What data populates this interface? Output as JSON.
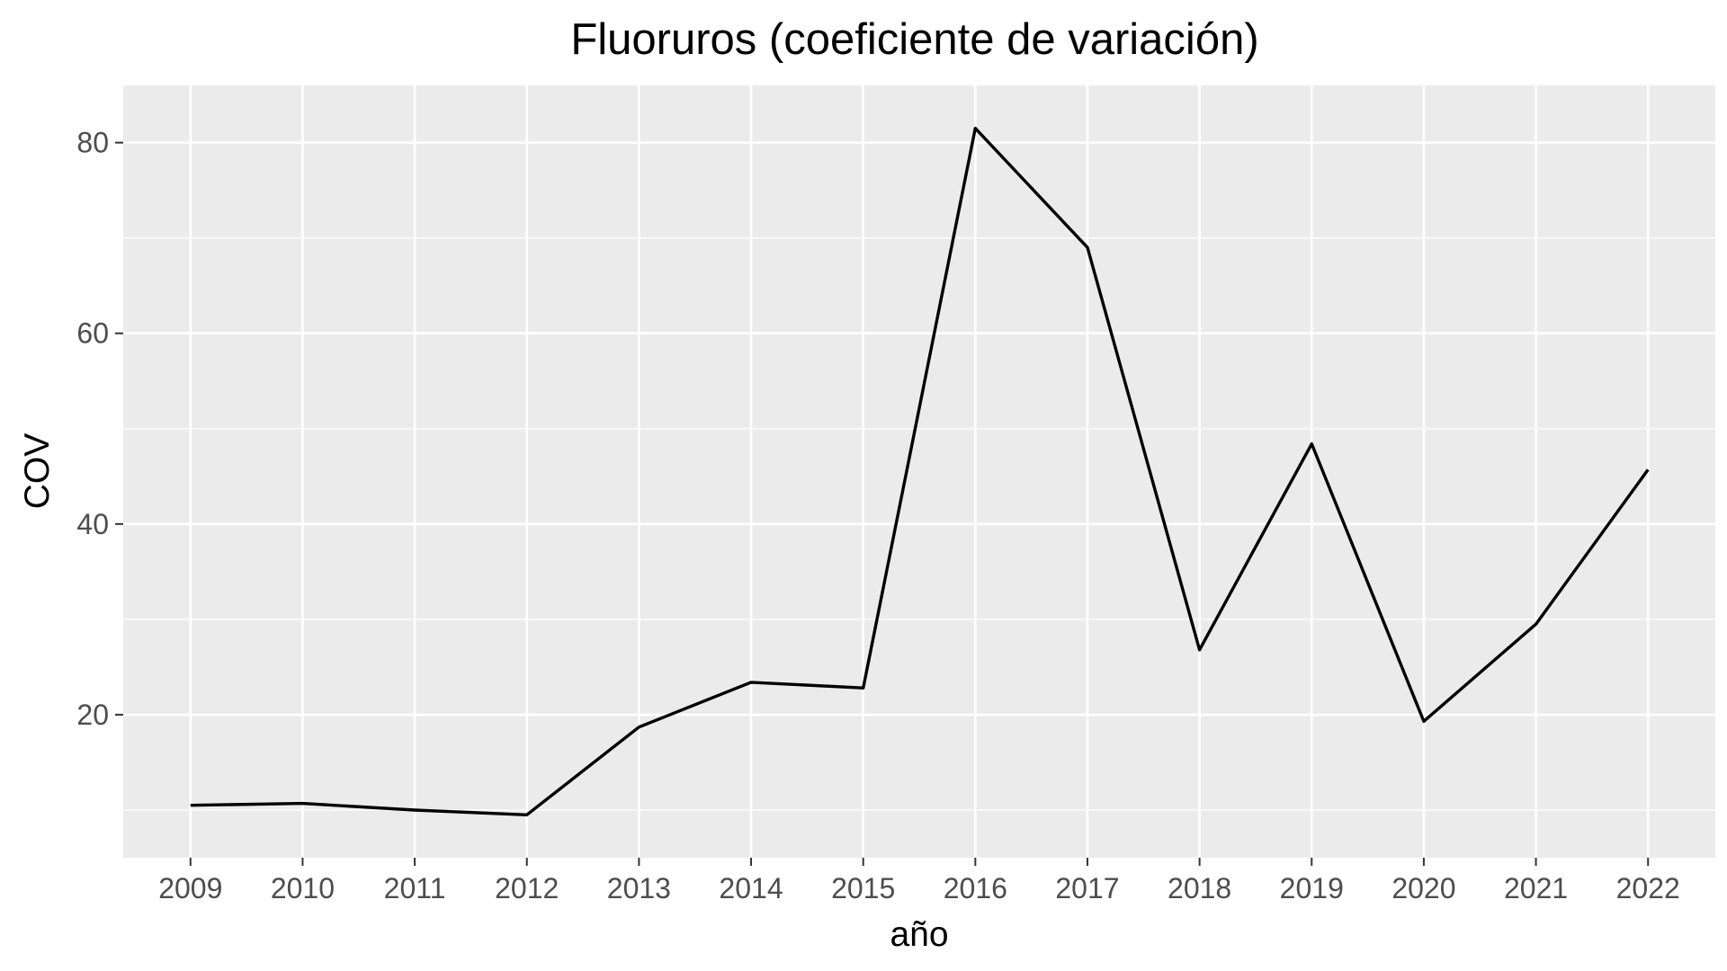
{
  "chart_data": {
    "type": "line",
    "title": "Fluoruros (coeficiente de variación)",
    "xlabel": "año",
    "ylabel": "COV",
    "x": [
      2009,
      2010,
      2011,
      2012,
      2013,
      2014,
      2015,
      2016,
      2017,
      2018,
      2019,
      2020,
      2021,
      2022
    ],
    "x_tick_labels": [
      "2009",
      "2010",
      "2011",
      "2012",
      "2013",
      "2014",
      "2015",
      "2016",
      "2017",
      "2018",
      "2019",
      "2020",
      "2021",
      "2022"
    ],
    "series": [
      {
        "values": [
          10.5,
          10.7,
          10.0,
          9.5,
          18.7,
          23.4,
          22.8,
          81.5,
          69.0,
          26.8,
          48.4,
          19.3,
          29.5,
          45.7
        ]
      }
    ],
    "y_ticks": [
      20,
      40,
      60,
      80
    ],
    "y_tick_labels": [
      "20",
      "40",
      "60",
      "80"
    ],
    "xlim": [
      2008.4,
      2022.6
    ],
    "ylim": [
      5.0,
      86.0
    ],
    "grid": true,
    "legend": "none",
    "colors": {
      "panel_background": "#ebebeb",
      "grid_line": "#ffffff",
      "series_line": "#000000",
      "tick_mark": "#333333",
      "tick_label": "#4d4d4d"
    }
  }
}
